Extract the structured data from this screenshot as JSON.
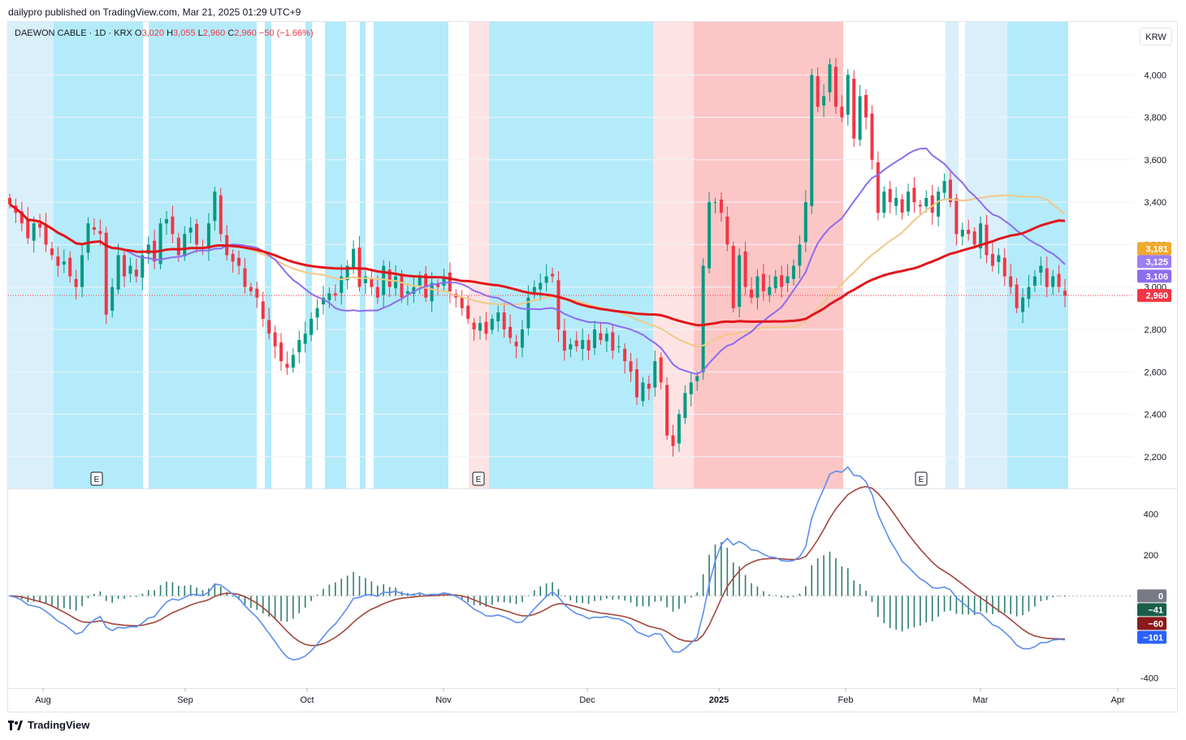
{
  "header": {
    "published": "dailypro published on TradingView.com, Mar 21, 2025 01:29 UTC+9"
  },
  "legend": {
    "symbol": "DAEWON CABLE · 1D · KRX",
    "o_label": "O",
    "o": "3,020",
    "h_label": "H",
    "h": "3,055",
    "l_label": "L",
    "l": "2,960",
    "c_label": "C",
    "c": "2,960",
    "change": "−50 (−1.66%)"
  },
  "currency": "KRW",
  "footer": {
    "brand": "TradingView"
  },
  "colors": {
    "up": "#089981",
    "down": "#f23645",
    "ma_red": "#e0161c",
    "ma_purple": "#8d6cf0",
    "ma_tan": "#f0c987",
    "band_blue": "#b3ebfa",
    "band_lightblue": "#d9f0fb",
    "band_pink": "#fde3e3",
    "band_red": "#fcc6c6",
    "macd_blue": "#5b8def",
    "signal_brown": "#a1473d",
    "hist": "#2e7d6e"
  },
  "chart_data": [
    {
      "type": "candlestick",
      "title": "",
      "x_tick_labels": [
        "Aug",
        "Sep",
        "Oct",
        "Nov",
        "Dec",
        "2025",
        "Feb",
        "Mar",
        "Apr"
      ],
      "y_tick_labels": [
        "2,200",
        "2,400",
        "2,600",
        "2,800",
        "3,000",
        "3,200",
        "3,400",
        "3,600",
        "3,800",
        "4,000"
      ],
      "ylim": [
        2050,
        4250
      ],
      "earnings_marker": "E",
      "price_badges": [
        {
          "label": "3,181",
          "value": 3181,
          "color": "#f0a92c"
        },
        {
          "label": "3,125",
          "value": 3125,
          "color": "#9b7ff3"
        },
        {
          "label": "3,106",
          "value": 3106,
          "color": "#8d6cf0"
        },
        {
          "label": "2,960",
          "value": 2960,
          "color": "#f23645"
        }
      ],
      "series_close": [
        3390,
        3350,
        3300,
        3230,
        3300,
        3280,
        3200,
        3150,
        3100,
        3120,
        3050,
        3000,
        3150,
        3300,
        3270,
        3250,
        2870,
        3000,
        3150,
        3050,
        3100,
        3050,
        3150,
        3200,
        3120,
        3300,
        3320,
        3250,
        3150,
        3250,
        3280,
        3200,
        3180,
        3300,
        3450,
        3250,
        3150,
        3120,
        3100,
        3000,
        2980,
        2950,
        2850,
        2780,
        2720,
        2650,
        2620,
        2680,
        2750,
        2780,
        2850,
        2900,
        2950,
        2970,
        2960,
        3050,
        3100,
        3180,
        3000,
        3050,
        3000,
        2950,
        3100,
        3000,
        3050,
        2950,
        2980,
        3000,
        3050,
        2950,
        3020,
        3000,
        3050,
        2980,
        2950,
        2900,
        2850,
        2800,
        2830,
        2780,
        2850,
        2880,
        2800,
        2760,
        2720,
        2800,
        2950,
        3000,
        3020,
        3050,
        3050,
        2800,
        2700,
        2730,
        2720,
        2750,
        2700,
        2800,
        2750,
        2780,
        2700,
        2720,
        2650,
        2600,
        2480,
        2550,
        2520,
        2650,
        2550,
        2300,
        2250,
        2400,
        2500,
        2550,
        2580,
        3100,
        3400,
        3400,
        3350,
        3200,
        2900,
        3150,
        3000,
        2950,
        3050,
        2980,
        3000,
        3050,
        3000,
        3050,
        3100,
        3200,
        3400,
        4000,
        3850,
        3900,
        4050,
        3850,
        3800,
        4000,
        3700,
        3900,
        3800,
        3600,
        3350,
        3450,
        3400,
        3420,
        3350,
        3450,
        3400,
        3380,
        3420,
        3350,
        3450,
        3500,
        3400,
        3250,
        3270,
        3250,
        3200,
        3300,
        3150,
        3100,
        3150,
        3050,
        3000,
        2900,
        2950,
        3000,
        3050,
        3100,
        3000,
        3050,
        3000,
        2960
      ],
      "macd_ylim": [
        -450,
        520
      ],
      "macd_tick_labels": [
        "-400",
        "200",
        "400"
      ],
      "macd_badges": [
        {
          "label": "0",
          "value": 0,
          "color": "#787b86"
        },
        {
          "label": "−41",
          "value": -41,
          "color": "#1a5e4a"
        },
        {
          "label": "−60",
          "value": -60,
          "color": "#8b1a1a"
        },
        {
          "label": "−101",
          "value": -101,
          "color": "#2962ff"
        }
      ]
    }
  ]
}
